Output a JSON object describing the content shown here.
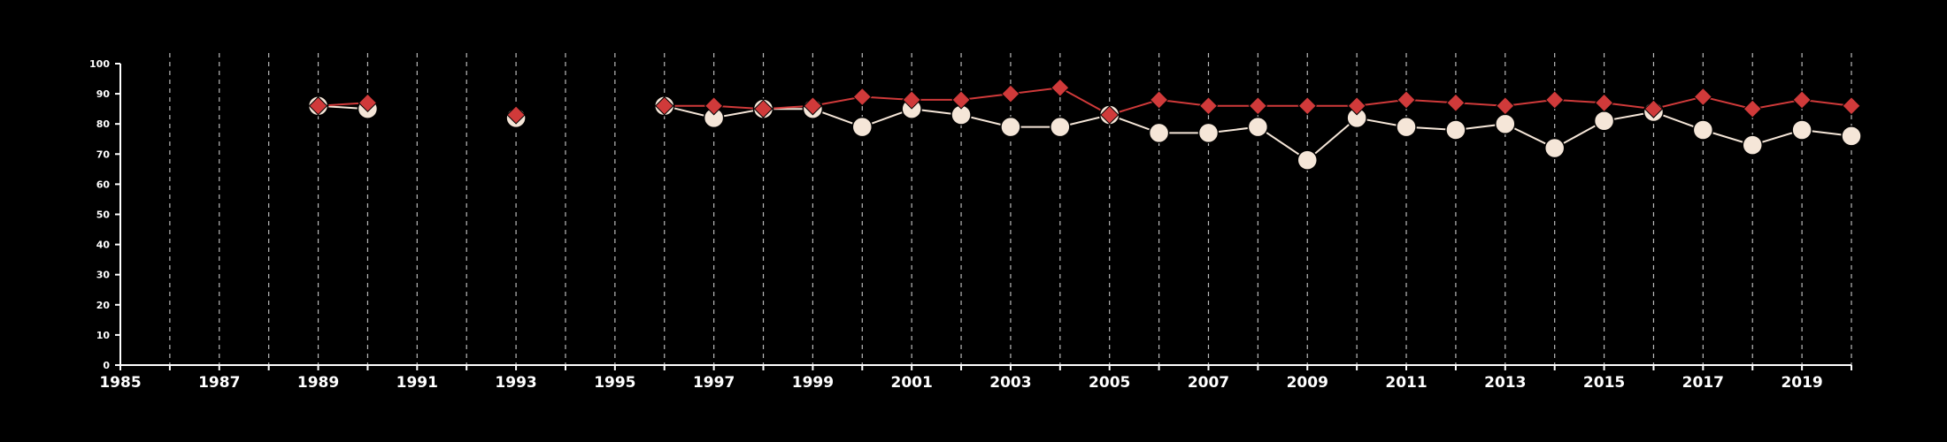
{
  "chart_data": {
    "type": "line",
    "title": "",
    "xlabel": "",
    "ylabel": "",
    "xlim": [
      1985,
      2020
    ],
    "ylim": [
      0,
      100
    ],
    "x_ticks": [
      1985,
      1987,
      1989,
      1991,
      1993,
      1995,
      1997,
      1999,
      2001,
      2003,
      2005,
      2007,
      2009,
      2011,
      2013,
      2015,
      2017,
      2019
    ],
    "y_ticks": [
      0,
      10,
      20,
      30,
      40,
      50,
      60,
      70,
      80,
      90,
      100
    ],
    "grid": "vertical dashed lines at each year",
    "legend": "none",
    "series": [
      {
        "color": "#f5e6d8",
        "marker": "circle",
        "points": [
          [
            1989,
            86
          ],
          [
            1990,
            85
          ],
          [
            1993,
            82
          ],
          [
            1996,
            86
          ],
          [
            1997,
            82
          ],
          [
            1998,
            85
          ],
          [
            1999,
            85
          ],
          [
            2000,
            79
          ],
          [
            2001,
            85
          ],
          [
            2002,
            83
          ],
          [
            2003,
            79
          ],
          [
            2004,
            79
          ],
          [
            2005,
            83
          ],
          [
            2006,
            77
          ],
          [
            2007,
            77
          ],
          [
            2008,
            79
          ],
          [
            2009,
            68
          ],
          [
            2010,
            82
          ],
          [
            2011,
            79
          ],
          [
            2012,
            78
          ],
          [
            2013,
            80
          ],
          [
            2014,
            72
          ],
          [
            2015,
            81
          ],
          [
            2016,
            84
          ],
          [
            2017,
            78
          ],
          [
            2018,
            73
          ],
          [
            2019,
            78
          ],
          [
            2020,
            76
          ]
        ]
      },
      {
        "color": "#d03a3a",
        "marker": "diamond",
        "points": [
          [
            1989,
            86
          ],
          [
            1990,
            87
          ],
          [
            1993,
            83
          ],
          [
            1996,
            86
          ],
          [
            1997,
            86
          ],
          [
            1998,
            85
          ],
          [
            1999,
            86
          ],
          [
            2000,
            89
          ],
          [
            2001,
            88
          ],
          [
            2002,
            88
          ],
          [
            2003,
            90
          ],
          [
            2004,
            92
          ],
          [
            2005,
            83
          ],
          [
            2006,
            88
          ],
          [
            2007,
            86
          ],
          [
            2008,
            86
          ],
          [
            2009,
            86
          ],
          [
            2010,
            86
          ],
          [
            2011,
            88
          ],
          [
            2012,
            87
          ],
          [
            2013,
            86
          ],
          [
            2014,
            88
          ],
          [
            2015,
            87
          ],
          [
            2016,
            85
          ],
          [
            2017,
            89
          ],
          [
            2018,
            85
          ],
          [
            2019,
            88
          ],
          [
            2020,
            86
          ]
        ]
      }
    ]
  }
}
